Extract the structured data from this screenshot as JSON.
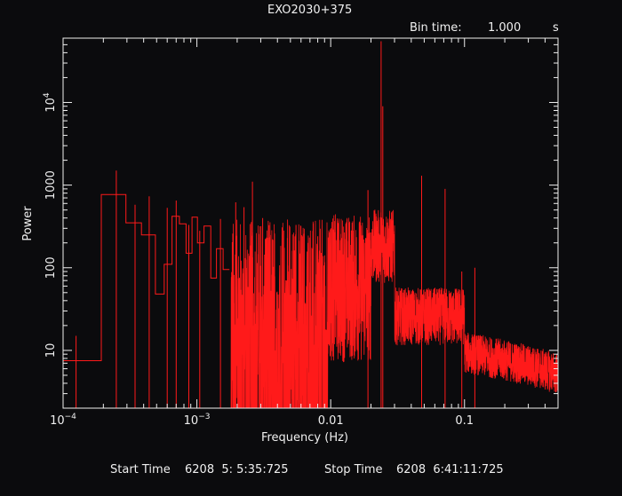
{
  "chart_data": {
    "type": "line",
    "title": "EXO2030+375",
    "subtitle": {
      "bin_label": "Bin time:",
      "bin_value": "1.000",
      "bin_unit": "s"
    },
    "xlabel": "Frequency (Hz)",
    "ylabel": "Power",
    "xscale": "log",
    "yscale": "log",
    "xlim": [
      0.0001,
      0.5
    ],
    "ylim": [
      2,
      60000
    ],
    "xticks": [
      {
        "value": 0.0001,
        "base": "10",
        "exp": "−4"
      },
      {
        "value": 0.001,
        "base": "10",
        "exp": "−3"
      },
      {
        "value": 0.01,
        "label": "0.01"
      },
      {
        "value": 0.1,
        "label": "0.1"
      }
    ],
    "yticks": [
      {
        "value": 10,
        "label": "10"
      },
      {
        "value": 100,
        "label": "100"
      },
      {
        "value": 1000,
        "label": "1000"
      },
      {
        "value": 10000,
        "base": "10",
        "exp": "4"
      }
    ],
    "grid": false,
    "line_color": "#ff1a1a",
    "axis_color": "#f0f0f0",
    "background": "#0b0b0d",
    "series": [
      {
        "x": [
          0.0001,
          0.000193,
          0.000193,
          0.000295,
          0.000295,
          0.000385,
          0.000385,
          0.00049,
          0.00049,
          0.00057,
          0.00057,
          0.000652,
          0.000652,
          0.00074,
          0.00074,
          0.00083,
          0.00083,
          0.00092,
          0.00092,
          0.00101,
          0.00101,
          0.00113,
          0.00113,
          0.00127,
          0.00127,
          0.0014,
          0.0014,
          0.00157,
          0.00157,
          0.00175
        ],
        "y": [
          7.5,
          7.5,
          770,
          770,
          350,
          350,
          250,
          250,
          48,
          48,
          110,
          110,
          420,
          420,
          340,
          340,
          150,
          150,
          410,
          410,
          200,
          200,
          320,
          320,
          75,
          75,
          170,
          170,
          95,
          95
        ],
        "spikes": [
          {
            "x": 0.000125,
            "y": 15
          },
          {
            "x": 0.00025,
            "y": 1500
          },
          {
            "x": 0.000345,
            "y": 580
          },
          {
            "x": 0.00044,
            "y": 730
          },
          {
            "x": 0.0006,
            "y": 530
          },
          {
            "x": 0.0007,
            "y": 650
          },
          {
            "x": 0.00087,
            "y": 330
          },
          {
            "x": 0.00105,
            "y": 280
          },
          {
            "x": 0.0015,
            "y": 390
          },
          {
            "x": 0.00195,
            "y": 620
          },
          {
            "x": 0.00225,
            "y": 540
          },
          {
            "x": 0.0026,
            "y": 1100
          },
          {
            "x": 0.0031,
            "y": 400
          },
          {
            "x": 0.0038,
            "y": 260
          },
          {
            "x": 0.0055,
            "y": 330
          },
          {
            "x": 0.008,
            "y": 240
          },
          {
            "x": 0.019,
            "y": 870
          },
          {
            "x": 0.0238,
            "y": 55000
          },
          {
            "x": 0.0245,
            "y": 9000
          },
          {
            "x": 0.0478,
            "y": 1300
          },
          {
            "x": 0.0716,
            "y": 900
          },
          {
            "x": 0.0955,
            "y": 90
          },
          {
            "x": 0.1195,
            "y": 100
          }
        ],
        "noise_regions": [
          {
            "x": [
              0.0018,
              0.0095
            ],
            "mean": 40,
            "spread": 1.1
          },
          {
            "x": [
              0.0095,
              0.02
            ],
            "mean": 70,
            "spread": 0.9
          },
          {
            "x": [
              0.02,
              0.03
            ],
            "mean": 200,
            "spread": 0.45
          },
          {
            "x": [
              0.03,
              0.1
            ],
            "mean": 28,
            "spread": 0.35
          },
          {
            "x": [
              0.1,
              0.5
            ],
            "mean": 10,
            "spread": 0.25
          }
        ]
      }
    ],
    "footer": {
      "start_label": "Start Time",
      "start_value": "6208  5: 5:35:725",
      "stop_label": "Stop Time",
      "stop_value": "6208  6:41:11:725"
    }
  }
}
